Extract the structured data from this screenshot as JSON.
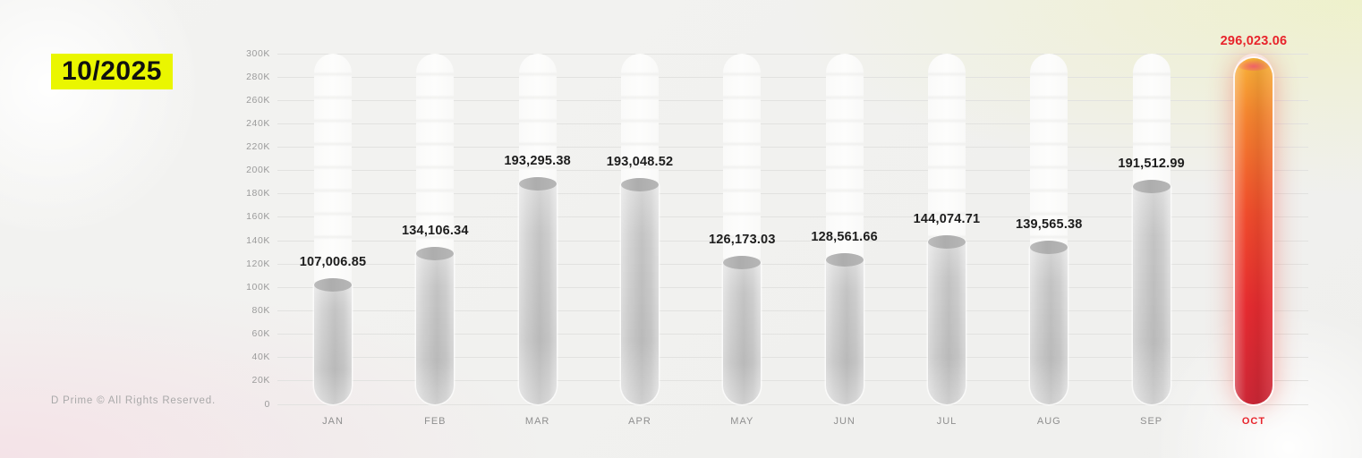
{
  "header": {
    "period": "10/2025"
  },
  "footer": {
    "copyright": "D Prime © All Rights Reserved."
  },
  "chart_data": {
    "type": "bar",
    "title": "",
    "xlabel": "",
    "ylabel": "",
    "categories": [
      "JAN",
      "FEB",
      "MAR",
      "APR",
      "MAY",
      "JUN",
      "JUL",
      "AUG",
      "SEP",
      "OCT"
    ],
    "values": [
      107006.85,
      134106.34,
      193295.38,
      193048.52,
      126173.03,
      128561.66,
      144074.71,
      139565.38,
      191512.99,
      296023.06
    ],
    "value_labels": [
      "107,006.85",
      "134,106.34",
      "193,295.38",
      "193,048.52",
      "126,173.03",
      "128,561.66",
      "144,074.71",
      "139,565.38",
      "191,512.99",
      "296,023.06"
    ],
    "y_ticks": [
      "0",
      "20K",
      "40K",
      "60K",
      "80K",
      "100K",
      "120K",
      "140K",
      "160K",
      "180K",
      "200K",
      "220K",
      "240K",
      "260K",
      "280K",
      "300K"
    ],
    "ylim": [
      0,
      300000
    ],
    "grid": "horizontal",
    "legend": "none",
    "highlight_index": 9,
    "colors": {
      "accent_red": "#e8232b",
      "badge_yellow": "#eaf600",
      "bar_gray": "#c9c9c9",
      "bar_hot_top": "#f8b238",
      "bar_hot_bottom": "#cc2736",
      "grid_line": "#e2e2e0",
      "axis_text": "#9b9b9b",
      "value_text": "#1d1d1d",
      "month_text": "#8f8f8f"
    }
  }
}
